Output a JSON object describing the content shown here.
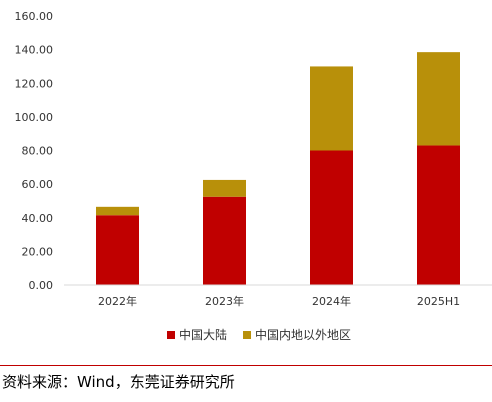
{
  "chart_data": {
    "type": "bar",
    "stacked": true,
    "categories": [
      "2022年",
      "2023年",
      "2024年",
      "2025H1"
    ],
    "series": [
      {
        "name": "中国大陆",
        "values": [
          41.5,
          52.5,
          80.0,
          83.0
        ],
        "color": "#c00000"
      },
      {
        "name": "中国内地以外地区",
        "values": [
          5.0,
          10.0,
          50.0,
          55.5
        ],
        "color": "#b8900a"
      }
    ],
    "ylim": [
      0,
      160
    ],
    "yticks": [
      "0.00",
      "20.00",
      "40.00",
      "60.00",
      "80.00",
      "100.00",
      "120.00",
      "140.00",
      "160.00"
    ],
    "grid": false,
    "legend_position": "bottom",
    "title": "",
    "xlabel": "",
    "ylabel": ""
  },
  "source": "资料来源：Wind，东莞证券研究所"
}
